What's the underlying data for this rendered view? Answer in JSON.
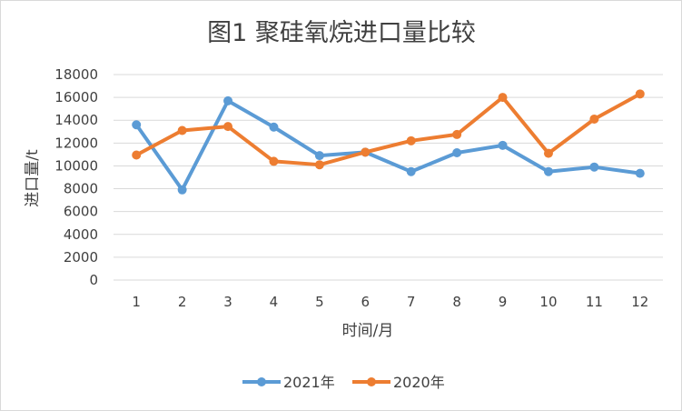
{
  "chart_data": {
    "type": "line",
    "title": "图1   聚硅氧烷进口量比较",
    "xlabel": "时间/月",
    "ylabel": "进口量/t",
    "categories": [
      "1",
      "2",
      "3",
      "4",
      "5",
      "6",
      "7",
      "8",
      "9",
      "10",
      "11",
      "12"
    ],
    "y_ticks": [
      "0",
      "2000",
      "4000",
      "6000",
      "8000",
      "10000",
      "12000",
      "14000",
      "16000",
      "18000"
    ],
    "ylim": [
      0,
      18000
    ],
    "grid": true,
    "legend_position": "bottom",
    "series": [
      {
        "name": "2021年",
        "color": "#5b9bd5",
        "values": [
          13600,
          7900,
          15700,
          13400,
          10900,
          11200,
          9500,
          11150,
          11800,
          9500,
          9900,
          9350
        ]
      },
      {
        "name": "2020年",
        "color": "#ed7d31",
        "values": [
          10950,
          13100,
          13450,
          10400,
          10100,
          11200,
          12200,
          12750,
          16000,
          11100,
          14100,
          16300
        ]
      }
    ]
  }
}
